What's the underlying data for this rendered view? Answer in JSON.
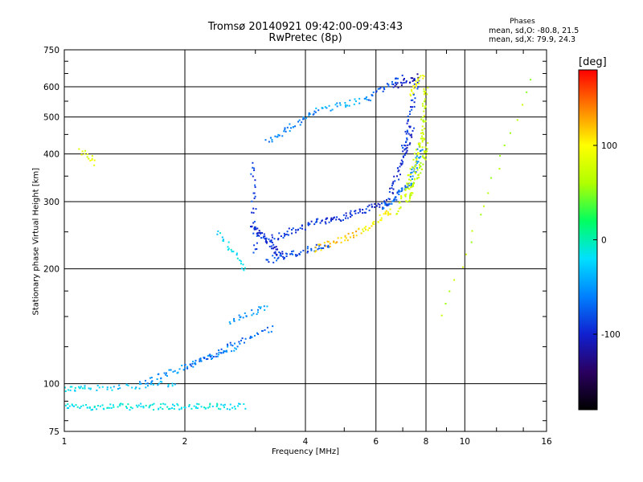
{
  "chart_data": {
    "type": "scatter",
    "title": "Tromsø 20140921 09:42:00-09:43:43",
    "subtitle": "RwPretec (8p)",
    "xlabel": "Frequency [MHz]",
    "ylabel": "Stationary phase Virtual Height [km]",
    "xscale": "log",
    "yscale": "log",
    "xlim": [
      1,
      16
    ],
    "ylim": [
      75,
      750
    ],
    "xticks": [
      "1",
      "2",
      "4",
      "6",
      "8",
      "10",
      "16"
    ],
    "yticks": [
      "75",
      "100",
      "200",
      "300",
      "400",
      "500",
      "600",
      "750"
    ],
    "grid": true,
    "stats": {
      "heading": "Phases",
      "o_line": "mean, sd,O: -80.8, 21.5",
      "x_line": "mean, sd,X:  79.9, 24.3"
    },
    "colorbar": {
      "unit": "[deg]",
      "range": [
        -180,
        180
      ],
      "ticks": [
        "100",
        "0",
        "-100"
      ],
      "colors": [
        "#000000",
        "#2a0060",
        "#1020d0",
        "#0080ff",
        "#00e0ff",
        "#00ff60",
        "#b0ff00",
        "#ffff00",
        "#ff8000",
        "#ff0000"
      ]
    },
    "segments": [
      {
        "from": [
          1.0,
          97
        ],
        "to": [
          1.12,
          97
        ],
        "n": 14,
        "phase": -20
      },
      {
        "from": [
          1.0,
          87
        ],
        "to": [
          2.8,
          87
        ],
        "n": 120,
        "phase": -15
      },
      {
        "from": [
          1.1,
          97
        ],
        "to": [
          1.9,
          100
        ],
        "n": 40,
        "phase": -30
      },
      {
        "from": [
          1.55,
          100
        ],
        "to": [
          2.7,
          125
        ],
        "n": 60,
        "phase": -55
      },
      {
        "from": [
          2.0,
          110
        ],
        "to": [
          3.3,
          140
        ],
        "n": 50,
        "phase": -70
      },
      {
        "from": [
          2.6,
          145
        ],
        "to": [
          3.2,
          160
        ],
        "n": 25,
        "phase": -50
      },
      {
        "from": [
          2.4,
          250
        ],
        "to": [
          2.85,
          200
        ],
        "n": 25,
        "phase": -20
      },
      {
        "from": [
          2.95,
          380
        ],
        "to": [
          3.0,
          220
        ],
        "n": 30,
        "phase": -85
      },
      {
        "from": [
          2.95,
          260
        ],
        "to": [
          3.5,
          215
        ],
        "n": 60,
        "phase": -95
      },
      {
        "from": [
          3.2,
          210
        ],
        "to": [
          4.6,
          232
        ],
        "n": 50,
        "phase": -80
      },
      {
        "from": [
          3.3,
          240
        ],
        "to": [
          4.5,
          270
        ],
        "n": 45,
        "phase": -90
      },
      {
        "from": [
          4.2,
          225
        ],
        "to": [
          5.5,
          250
        ],
        "n": 35,
        "phase": 120
      },
      {
        "from": [
          5.5,
          250
        ],
        "to": [
          6.6,
          285
        ],
        "n": 30,
        "phase": 100
      },
      {
        "from": [
          4.5,
          265
        ],
        "to": [
          6.5,
          300
        ],
        "n": 60,
        "phase": -95
      },
      {
        "from": [
          6.3,
          290
        ],
        "to": [
          7.3,
          335
        ],
        "n": 40,
        "phase": -70
      },
      {
        "from": [
          7.3,
          335
        ],
        "to": [
          7.8,
          420
        ],
        "n": 30,
        "phase": -60
      },
      {
        "from": [
          6.5,
          310
        ],
        "to": [
          7.4,
          460
        ],
        "n": 45,
        "phase": -100
      },
      {
        "from": [
          7.0,
          400
        ],
        "to": [
          7.6,
          620
        ],
        "n": 40,
        "phase": -90
      },
      {
        "from": [
          6.6,
          600
        ],
        "to": [
          7.6,
          640
        ],
        "n": 25,
        "phase": -110
      },
      {
        "from": [
          6.8,
          280
        ],
        "to": [
          7.85,
          450
        ],
        "n": 50,
        "phase": 80
      },
      {
        "from": [
          7.2,
          300
        ],
        "to": [
          8.05,
          420
        ],
        "n": 55,
        "phase": 70
      },
      {
        "from": [
          7.8,
          420
        ],
        "to": [
          8.0,
          600
        ],
        "n": 35,
        "phase": 75
      },
      {
        "from": [
          7.3,
          580
        ],
        "to": [
          7.85,
          640
        ],
        "n": 20,
        "phase": 95
      },
      {
        "from": [
          3.2,
          430
        ],
        "to": [
          4.3,
          520
        ],
        "n": 40,
        "phase": -60
      },
      {
        "from": [
          4.3,
          520
        ],
        "to": [
          5.8,
          560
        ],
        "n": 30,
        "phase": -45
      },
      {
        "from": [
          5.8,
          560
        ],
        "to": [
          6.9,
          640
        ],
        "n": 25,
        "phase": -80
      },
      {
        "from": [
          1.1,
          410
        ],
        "to": [
          1.2,
          380
        ],
        "n": 14,
        "phase": 85
      },
      {
        "from": [
          8.8,
          150
        ],
        "to": [
          14.5,
          620
        ],
        "n": 20,
        "phase": 60
      }
    ]
  }
}
